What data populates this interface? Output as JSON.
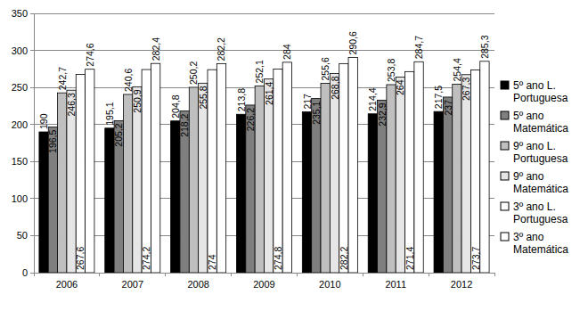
{
  "chart_data": {
    "type": "bar",
    "categories": [
      "2006",
      "2007",
      "2008",
      "2009",
      "2010",
      "2011",
      "2012"
    ],
    "series": [
      {
        "name": "5º ano L. Portuguesa",
        "color": "#000000",
        "values": [
          190,
          195.1,
          204.8,
          213.8,
          217,
          214.4,
          217.5
        ],
        "value_labels": [
          "190",
          "195,1",
          "204,8",
          "213,8",
          "217",
          "214,4",
          "217,5"
        ]
      },
      {
        "name": "5º ano Matemática",
        "color": "#7f7f7f",
        "values": [
          196.5,
          205.2,
          218.2,
          226.2,
          235.1,
          232.9,
          237
        ],
        "value_labels": [
          "196,5",
          "205,2",
          "218,2",
          "226,2",
          "235,1",
          "232,9",
          "237"
        ]
      },
      {
        "name": "9º ano L. Portuguesa",
        "color": "#bfbfbf",
        "values": [
          242.7,
          240.6,
          250.2,
          252.1,
          255.6,
          253.8,
          254.4
        ],
        "value_labels": [
          "242,7",
          "240,6",
          "250,2",
          "252,1",
          "255,6",
          "253,8",
          "254,4"
        ]
      },
      {
        "name": "9º ano Matemática",
        "color": "#e6e6e6",
        "values": [
          246.3,
          250.9,
          255.8,
          261.4,
          268.8,
          264,
          267.3
        ],
        "value_labels": [
          "246,3",
          "250,9",
          "255,8",
          "261,4",
          "268,8",
          "264",
          "267,3"
        ]
      },
      {
        "name": "3º ano L. Portuguesa",
        "color": "#ffffff",
        "values": [
          267.6,
          274.2,
          274,
          274.8,
          282.2,
          271.4,
          273.7
        ],
        "value_labels": [
          "267,6",
          "274,2",
          "274",
          "274,8",
          "282,2",
          "271,4",
          "273,7"
        ]
      },
      {
        "name": "3º ano Matemática",
        "color": "#ffffff",
        "values": [
          274.6,
          282.4,
          282.2,
          284,
          290.6,
          284.7,
          285.3
        ],
        "value_labels": [
          "274,6",
          "282,4",
          "282,2",
          "284",
          "290,6",
          "284,7",
          "285,3"
        ]
      }
    ],
    "ylim": [
      0,
      350
    ],
    "yticks": [
      0,
      50,
      100,
      150,
      200,
      250,
      300,
      350
    ],
    "grid": true,
    "legend": "right",
    "data_labels": true
  }
}
